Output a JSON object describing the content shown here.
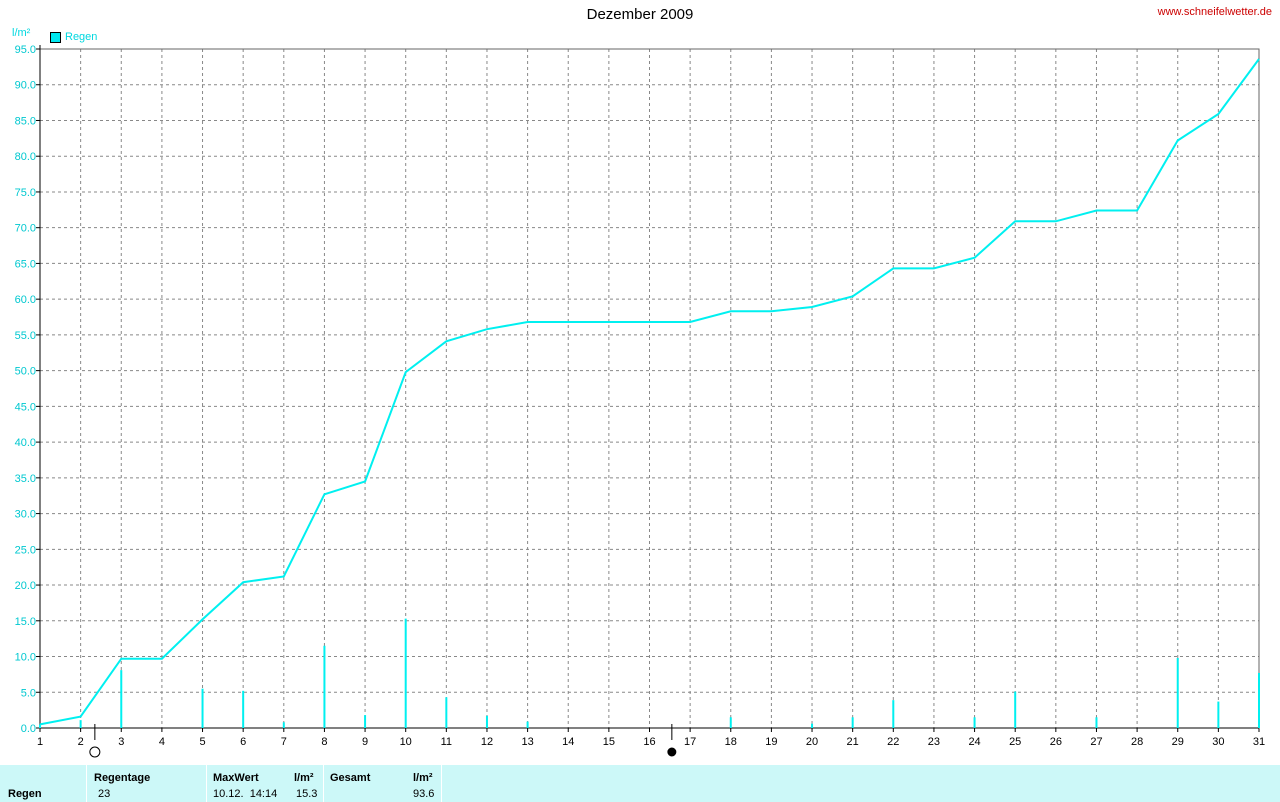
{
  "title": "Dezember 2009",
  "site": "www.schneifelwetter.de",
  "y_unit": "l/m²",
  "legend_label": "Regen",
  "colors": {
    "series": "#00f0f0",
    "grid": "#888888",
    "site": "#cc0000"
  },
  "chart_data": {
    "type": "line",
    "title": "Dezember 2009",
    "ylabel": "l/m²",
    "xlabel": "",
    "ylim": [
      0,
      95
    ],
    "xlim": [
      1,
      31
    ],
    "x": [
      1,
      2,
      3,
      4,
      5,
      6,
      7,
      8,
      9,
      10,
      11,
      12,
      13,
      14,
      15,
      16,
      17,
      18,
      19,
      20,
      21,
      22,
      23,
      24,
      25,
      26,
      27,
      28,
      29,
      30,
      31
    ],
    "x_tick_labels": [
      "1",
      "2",
      "3",
      "4",
      "5",
      "6",
      "7",
      "8",
      "9",
      "10",
      "11",
      "12",
      "13",
      "14",
      "15",
      "16",
      "17",
      "18",
      "19",
      "20",
      "21",
      "22",
      "23",
      "24",
      "25",
      "26",
      "27",
      "28",
      "29",
      "30",
      "31"
    ],
    "y_ticks": [
      0,
      5,
      10,
      15,
      20,
      25,
      30,
      35,
      40,
      45,
      50,
      55,
      60,
      65,
      70,
      75,
      80,
      85,
      90,
      95
    ],
    "y_tick_labels": [
      "0.0",
      "5.0",
      "10.0",
      "15.0",
      "20.0",
      "25.0",
      "30.0",
      "35.0",
      "40.0",
      "45.0",
      "50.0",
      "55.0",
      "60.0",
      "65.0",
      "70.0",
      "75.0",
      "80.0",
      "85.0",
      "90.0",
      "95.0"
    ],
    "grid": true,
    "legend_position": "top-left",
    "series": [
      {
        "name": "Regen",
        "kind": "cumulative-line",
        "values": [
          0.5,
          1.6,
          9.7,
          9.7,
          15.2,
          20.4,
          21.2,
          32.7,
          34.5,
          49.8,
          54.1,
          55.8,
          56.8,
          56.8,
          56.8,
          56.8,
          56.8,
          58.3,
          58.3,
          58.9,
          60.4,
          64.3,
          64.3,
          65.8,
          70.9,
          70.9,
          72.4,
          72.4,
          82.2,
          85.9,
          93.6
        ]
      },
      {
        "name": "Regen (daily)",
        "kind": "bars",
        "values": [
          0.5,
          1.1,
          8.1,
          0,
          5.5,
          5.2,
          0.8,
          11.5,
          1.8,
          15.3,
          4.3,
          1.7,
          0.9,
          0,
          0,
          0,
          0,
          1.5,
          0,
          0.6,
          1.5,
          3.9,
          0,
          1.5,
          5.1,
          0,
          1.5,
          0,
          9.8,
          3.7,
          7.7
        ]
      }
    ],
    "moon_phases": [
      {
        "day": 2.35,
        "phase": "full-moon"
      },
      {
        "day": 16.55,
        "phase": "new-moon"
      }
    ]
  },
  "footer": {
    "row_label": "Regen",
    "regentage_header": "Regentage",
    "regentage_value": "23",
    "maxwert_header": "MaxWert",
    "maxwert_unit": "l/m²",
    "maxwert_time": "10.12.  14:14",
    "maxwert_value": "15.3",
    "gesamt_header": "Gesamt",
    "gesamt_unit": "l/m²",
    "gesamt_value": "93.6"
  }
}
